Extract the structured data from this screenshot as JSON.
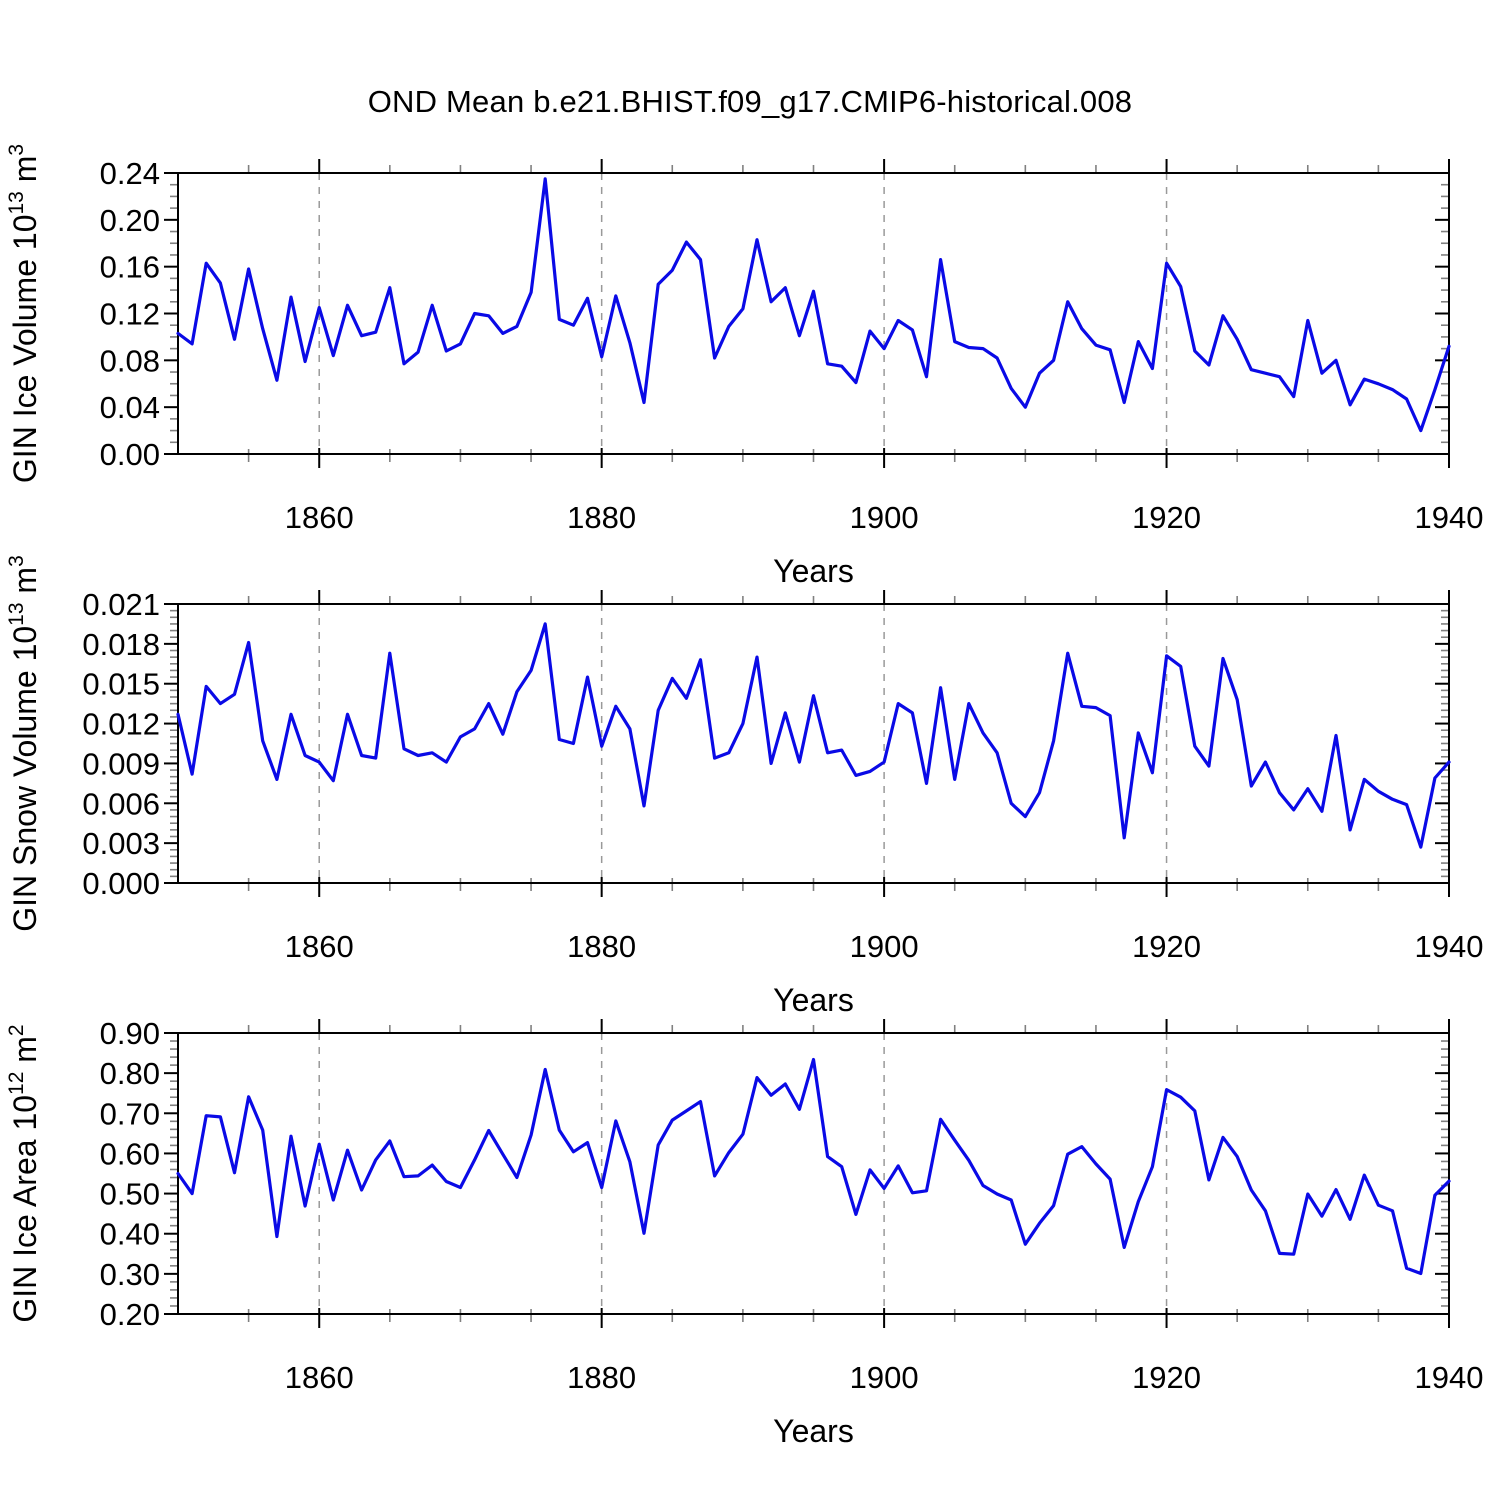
{
  "title": "OND Mean b.e21.BHIST.f09_g17.CMIP6-historical.008",
  "colors": {
    "line": "#0a0ae6",
    "axis": "#000000",
    "grid": "#999999",
    "minor_tick": "#808080",
    "background": "#ffffff"
  },
  "x": {
    "label": "Years",
    "start": 1850,
    "end": 1940,
    "major_ticks": [
      1860,
      1880,
      1900,
      1920,
      1940
    ],
    "minor_step": 5,
    "gridlines": [
      1860,
      1880,
      1900,
      1920
    ]
  },
  "chart_data": [
    {
      "type": "line",
      "name": "gin-ice-volume",
      "ylabel": "GIN Ice Volume 10^13 m^3",
      "xlabel": "Years",
      "ylim": [
        0.0,
        0.24
      ],
      "ymajor": 0.04,
      "yminor": 0.01,
      "ydecimals": 2,
      "x_range": [
        1850,
        1940
      ],
      "values": [
        0.103,
        0.094,
        0.163,
        0.146,
        0.098,
        0.158,
        0.107,
        0.063,
        0.134,
        0.079,
        0.125,
        0.084,
        0.127,
        0.101,
        0.104,
        0.142,
        0.077,
        0.087,
        0.127,
        0.088,
        0.094,
        0.12,
        0.118,
        0.103,
        0.109,
        0.138,
        0.235,
        0.115,
        0.11,
        0.133,
        0.083,
        0.135,
        0.095,
        0.044,
        0.145,
        0.157,
        0.181,
        0.166,
        0.082,
        0.109,
        0.124,
        0.183,
        0.13,
        0.142,
        0.101,
        0.139,
        0.077,
        0.075,
        0.061,
        0.105,
        0.09,
        0.114,
        0.106,
        0.066,
        0.166,
        0.096,
        0.091,
        0.09,
        0.082,
        0.056,
        0.04,
        0.069,
        0.08,
        0.13,
        0.107,
        0.093,
        0.089,
        0.044,
        0.096,
        0.073,
        0.163,
        0.143,
        0.088,
        0.076,
        0.118,
        0.098,
        0.072,
        0.069,
        0.066,
        0.049,
        0.114,
        0.069,
        0.08,
        0.042,
        0.064,
        0.06,
        0.055,
        0.047,
        0.02,
        0.055,
        0.092
      ]
    },
    {
      "type": "line",
      "name": "gin-snow-volume",
      "ylabel": "GIN Snow Volume 10^13 m^3",
      "xlabel": "Years",
      "ylim": [
        0.0,
        0.021
      ],
      "ymajor": 0.003,
      "yminor": 0.0005,
      "ydecimals": 3,
      "x_range": [
        1850,
        1940
      ],
      "values": [
        0.0127,
        0.0082,
        0.0148,
        0.0135,
        0.0142,
        0.0181,
        0.0107,
        0.0078,
        0.0127,
        0.0096,
        0.0091,
        0.0077,
        0.0127,
        0.0096,
        0.0094,
        0.0173,
        0.0101,
        0.0096,
        0.0098,
        0.0091,
        0.011,
        0.0116,
        0.0135,
        0.0112,
        0.0144,
        0.016,
        0.0195,
        0.0108,
        0.0105,
        0.0155,
        0.0103,
        0.0133,
        0.0116,
        0.0058,
        0.013,
        0.0154,
        0.0139,
        0.0168,
        0.0094,
        0.0098,
        0.012,
        0.017,
        0.009,
        0.0128,
        0.0091,
        0.0141,
        0.0098,
        0.01,
        0.0081,
        0.0084,
        0.0091,
        0.0135,
        0.0128,
        0.0075,
        0.0147,
        0.0078,
        0.0135,
        0.0113,
        0.0098,
        0.006,
        0.005,
        0.0068,
        0.0107,
        0.0173,
        0.0133,
        0.0132,
        0.0126,
        0.0034,
        0.0113,
        0.0083,
        0.0171,
        0.0163,
        0.0103,
        0.0088,
        0.0169,
        0.0138,
        0.0073,
        0.0091,
        0.0068,
        0.0055,
        0.0071,
        0.0054,
        0.0111,
        0.004,
        0.0078,
        0.0069,
        0.0063,
        0.0059,
        0.0027,
        0.0079,
        0.0091
      ]
    },
    {
      "type": "line",
      "name": "gin-ice-area",
      "ylabel": "GIN Ice Area 10^12 m^2",
      "xlabel": "Years",
      "ylim": [
        0.2,
        0.9
      ],
      "ymajor": 0.1,
      "yminor": 0.02,
      "ydecimals": 2,
      "x_range": [
        1850,
        1940
      ],
      "values": [
        0.55,
        0.5,
        0.694,
        0.691,
        0.552,
        0.741,
        0.658,
        0.393,
        0.643,
        0.469,
        0.623,
        0.484,
        0.608,
        0.509,
        0.584,
        0.631,
        0.542,
        0.544,
        0.571,
        0.53,
        0.515,
        0.584,
        0.657,
        0.598,
        0.54,
        0.646,
        0.809,
        0.658,
        0.604,
        0.627,
        0.515,
        0.681,
        0.579,
        0.401,
        0.621,
        0.683,
        0.706,
        0.729,
        0.544,
        0.602,
        0.648,
        0.789,
        0.745,
        0.773,
        0.71,
        0.834,
        0.592,
        0.567,
        0.448,
        0.559,
        0.513,
        0.569,
        0.502,
        0.507,
        0.685,
        0.633,
        0.583,
        0.52,
        0.499,
        0.484,
        0.374,
        0.426,
        0.47,
        0.598,
        0.617,
        0.574,
        0.536,
        0.366,
        0.48,
        0.567,
        0.759,
        0.74,
        0.706,
        0.534,
        0.64,
        0.592,
        0.509,
        0.457,
        0.351,
        0.349,
        0.499,
        0.444,
        0.51,
        0.436,
        0.546,
        0.471,
        0.457,
        0.314,
        0.301,
        0.496,
        0.531
      ]
    }
  ]
}
